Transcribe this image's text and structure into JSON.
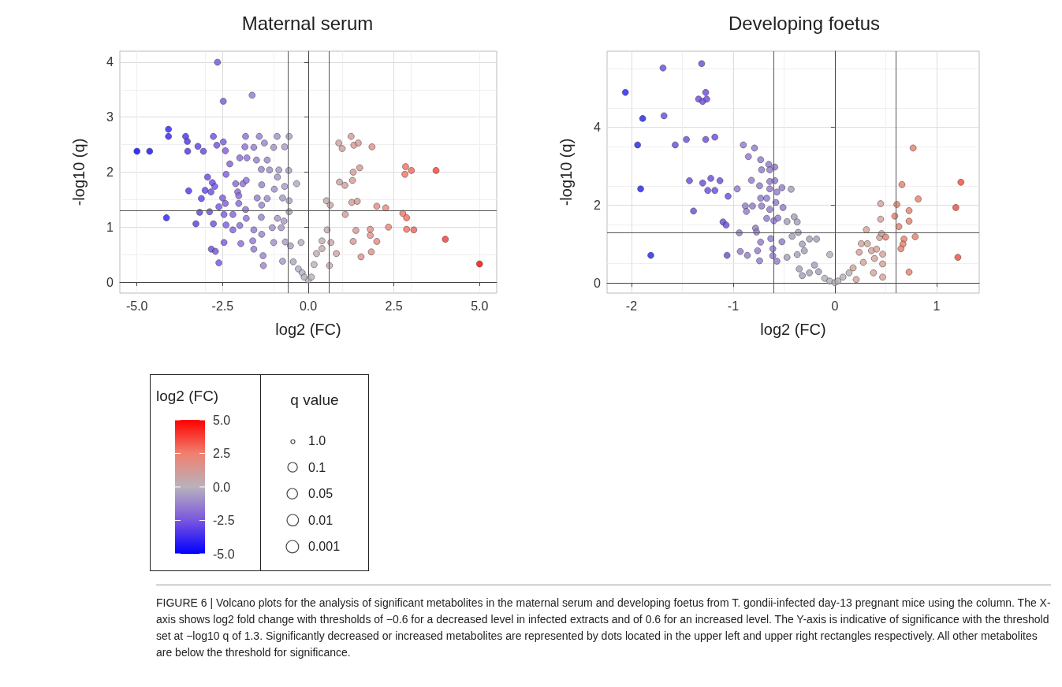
{
  "chart_data": [
    {
      "type": "scatter",
      "title": "Maternal serum",
      "xlabel": "log2 (FC)",
      "ylabel": "-log10 (q)",
      "clabel": "log2 (FC)",
      "clim": [
        -5,
        5
      ],
      "cticks": [
        {
          "value": -5,
          "label": "-5.0"
        },
        {
          "value": -2.5,
          "label": "-2.5"
        },
        {
          "value": 0,
          "label": "0.0"
        },
        {
          "value": 2.5,
          "label": "2.5"
        },
        {
          "value": 5,
          "label": "5.0"
        }
      ],
      "xlim": [
        -5.5,
        5.5
      ],
      "xticks": [
        {
          "value": -5,
          "label": "-5.0"
        },
        {
          "value": -2.5,
          "label": "-2.5"
        },
        {
          "value": 0,
          "label": "0.0"
        },
        {
          "value": 2.5,
          "label": "2.5"
        },
        {
          "value": 5,
          "label": "5.0"
        }
      ],
      "ylim": [
        -0.2,
        4.2
      ],
      "yticks": [
        0,
        1,
        2,
        3,
        4
      ],
      "grid": true,
      "marker": "circle",
      "ref_lines": [
        {
          "axis": "x",
          "value": -0.6,
          "label": null
        },
        {
          "axis": "x",
          "value": 0.6,
          "label": null
        },
        {
          "axis": "y",
          "value": 1.3,
          "label": null
        }
      ],
      "annotations": [
        "FIGURE 6 | Volcano plots for the analysis of significant metabolites in the maternal serum and developing foetus from T. gondii-infected day-13 pregnant mice using the column. The X-axis shows log2 fold change with thresholds of −0.6 for a decreased level in infected extracts and of 0.6 for an increased level. The Y-axis is indicative of significance with the threshold set at −log10 q of 1.3. Significantly decreased or increased metabolites are represented by dots located in the upper left and upper right rectangles respectively. All other metabolites are below the threshold for significance."
      ],
      "x": [
        -2.65,
        -1.64,
        -2.48,
        -4.08,
        -4.08,
        -5.0,
        -4.63,
        -3.58,
        -3.53,
        -3.52,
        -3.22,
        -3.06,
        -2.77,
        -2.67,
        -2.48,
        -2.42,
        -1.83,
        -1.43,
        -0.91,
        -0.56,
        -1.85,
        -1.59,
        -1.28,
        -1.01,
        -0.69,
        -2.29,
        -2.4,
        -2.0,
        -1.79,
        -1.51,
        -1.2,
        -1.37,
        -1.13,
        -0.86,
        -0.57,
        -2.94,
        -2.8,
        -2.73,
        -3.49,
        -3.01,
        -2.84,
        -2.12,
        -1.91,
        -1.81,
        -1.36,
        -0.9,
        -0.69,
        -0.34,
        -2.06,
        -2.03,
        -2.5,
        -3.12,
        -1.49,
        -1.2,
        -0.99,
        -0.75,
        -0.56,
        -2.61,
        -2.42,
        -2.03,
        -1.36,
        -3.17,
        -2.88,
        -2.46,
        -2.2,
        -1.83,
        -1.37,
        -0.9,
        -0.56,
        -4.14,
        -3.28,
        -2.77,
        -2.4,
        -2.2,
        -2.0,
        -1.81,
        -1.59,
        -1.05,
        -0.71,
        -2.46,
        -1.97,
        -1.62,
        -1.36,
        -1.01,
        -0.79,
        -2.83,
        -2.71,
        -1.59,
        -1.32,
        -2.61,
        -1.31,
        -0.67,
        -0.52,
        -0.21,
        -0.75,
        -0.44,
        -0.29,
        -0.18,
        0.0,
        0.09,
        -0.12,
        0.24,
        0.4,
        0.66,
        0.82,
        0.62,
        0.17,
        0.4,
        0.55,
        0.53,
        0.64,
        0.89,
        0.99,
        1.25,
        1.33,
        1.46,
        1.86,
        1.31,
        1.5,
        0.91,
        1.07,
        1.29,
        1.08,
        1.27,
        1.43,
        2.0,
        2.26,
        2.84,
        3.01,
        2.82,
        3.73,
        2.76,
        2.87,
        2.87,
        3.08,
        2.34,
        1.81,
        1.39,
        1.81,
        2.0,
        1.31,
        1.84,
        1.54,
        4.0,
        5.0
      ],
      "values": [
        4.0,
        3.4,
        3.29,
        2.78,
        2.65,
        2.38,
        2.38,
        2.65,
        2.56,
        2.38,
        2.47,
        2.38,
        2.65,
        2.49,
        2.55,
        2.39,
        2.65,
        2.65,
        2.65,
        2.65,
        2.46,
        2.45,
        2.53,
        2.45,
        2.46,
        2.15,
        1.96,
        2.26,
        2.26,
        2.22,
        2.22,
        2.05,
        2.04,
        2.04,
        2.03,
        1.91,
        1.81,
        1.74,
        1.66,
        1.67,
        1.64,
        1.79,
        1.79,
        1.85,
        1.77,
        1.91,
        1.74,
        1.79,
        1.64,
        1.57,
        1.53,
        1.52,
        1.53,
        1.52,
        1.69,
        1.53,
        1.48,
        1.37,
        1.43,
        1.43,
        1.4,
        1.27,
        1.28,
        1.23,
        1.23,
        1.32,
        1.18,
        1.16,
        1.28,
        1.17,
        1.06,
        1.06,
        1.04,
        0.95,
        1.03,
        1.16,
        0.95,
        0.99,
        1.11,
        0.72,
        0.7,
        0.75,
        0.87,
        0.72,
        0.99,
        0.6,
        0.56,
        0.6,
        0.48,
        0.35,
        0.3,
        0.73,
        0.66,
        0.72,
        0.38,
        0.37,
        0.24,
        0.17,
        0.04,
        0.09,
        0.09,
        0.52,
        0.75,
        0.72,
        0.52,
        0.3,
        0.32,
        0.61,
        0.95,
        1.48,
        1.4,
        2.53,
        2.43,
        2.65,
        2.49,
        2.53,
        2.46,
        2.0,
        2.08,
        1.82,
        1.76,
        1.85,
        1.23,
        1.45,
        1.47,
        1.38,
        1.35,
        2.1,
        2.03,
        1.96,
        2.03,
        1.25,
        1.17,
        0.96,
        0.95,
        1.0,
        0.96,
        0.94,
        0.85,
        0.74,
        0.74,
        0.55,
        0.46,
        0.78,
        0.33
      ],
      "cvalues": [
        -2.65,
        -1.64,
        -2.48,
        -4.08,
        -4.08,
        -5.0,
        -4.63,
        -3.58,
        -3.53,
        -3.52,
        -3.22,
        -3.06,
        -2.77,
        -2.67,
        -2.48,
        -2.42,
        -1.83,
        -1.43,
        -0.91,
        -0.56,
        -1.85,
        -1.59,
        -1.28,
        -1.01,
        -0.69,
        -2.29,
        -2.4,
        -2.0,
        -1.79,
        -1.51,
        -1.2,
        -1.37,
        -1.13,
        -0.86,
        -0.57,
        -2.94,
        -2.8,
        -2.73,
        -3.49,
        -3.01,
        -2.84,
        -2.12,
        -1.91,
        -1.81,
        -1.36,
        -0.9,
        -0.69,
        -0.34,
        -2.06,
        -2.03,
        -2.5,
        -3.12,
        -1.49,
        -1.2,
        -0.99,
        -0.75,
        -0.56,
        -2.61,
        -2.42,
        -2.03,
        -1.36,
        -3.17,
        -2.88,
        -2.46,
        -2.2,
        -1.83,
        -1.37,
        -0.9,
        -0.56,
        -4.14,
        -3.28,
        -2.77,
        -2.4,
        -2.2,
        -2.0,
        -1.81,
        -1.59,
        -1.05,
        -0.71,
        -2.46,
        -1.97,
        -1.62,
        -1.36,
        -1.01,
        -0.79,
        -2.83,
        -2.71,
        -1.59,
        -1.32,
        -2.61,
        -1.31,
        -0.67,
        -0.52,
        -0.21,
        -0.75,
        -0.44,
        -0.29,
        -0.18,
        0.0,
        0.09,
        -0.12,
        0.24,
        0.4,
        0.66,
        0.82,
        0.62,
        0.17,
        0.4,
        0.55,
        0.53,
        0.64,
        0.89,
        0.99,
        1.25,
        1.33,
        1.46,
        1.86,
        1.31,
        1.5,
        0.91,
        1.07,
        1.29,
        1.08,
        1.27,
        1.43,
        2.0,
        2.26,
        2.84,
        3.01,
        2.82,
        3.73,
        2.76,
        2.87,
        2.87,
        3.08,
        2.34,
        1.81,
        1.39,
        1.81,
        2.0,
        1.31,
        1.84,
        1.54,
        4.0,
        5.0
      ]
    },
    {
      "type": "scatter",
      "title": "Developing foetus",
      "xlabel": "log2 (FC)",
      "ylabel": "-log10 (q)",
      "colors": [
        "#6a48d8",
        "#6a48d8",
        "#2020e8",
        "#6a48d8",
        "#6a48d8",
        "#6a48d8",
        "#6a48d8",
        "#2020e8",
        "#6a48d8",
        "#2020e8",
        "#6a48d8",
        "#6a48d8",
        "#6a48d8",
        "#6a48d8",
        "#2020e8",
        "#6a48d8",
        "#6a48d8",
        "#6a48d8",
        "#6a48d8",
        "#6a48d8",
        "#6a48d8",
        "#6a48d8",
        "#6a48d8",
        "#2020e8",
        "#9078cc",
        "#9078cc",
        "#9078cc",
        "#9078cc",
        "#9078cc",
        "#9078cc",
        "#9078cc",
        "#9078cc",
        "#9078cc",
        "#9078cc",
        "#9078cc",
        "#9078cc",
        "#9078cc",
        "#9078cc",
        "#9078cc",
        "#a49cb8",
        "#9078cc",
        "#9078cc",
        "#9078cc",
        "#9078cc",
        "#9078cc",
        "#9078cc",
        "#9078cc",
        "#9078cc",
        "#9078cc",
        "#9078cc",
        "#9078cc",
        "#9078cc",
        "#9078cc",
        "#a49cb8",
        "#a49cb8",
        "#a49cb8",
        "#6a48d8",
        "#6a48d8",
        "#9078cc",
        "#9078cc",
        "#9078cc",
        "#9078cc",
        "#9078cc",
        "#a49cb8",
        "#a49cb8",
        "#a49cb8",
        "#a49cb8",
        "#6a48d8",
        "#9078cc",
        "#9078cc",
        "#9078cc",
        "#9078cc",
        "#9078cc",
        "#9078cc",
        "#9078cc",
        "#9078cc",
        "#a49cb8",
        "#a49cb8",
        "#a49cb8",
        "#a49cb8",
        "#a49cb8",
        "#a49cb8",
        "#a49cb8",
        "#a49cb8",
        "#a49cb8",
        "#b4aeb4",
        "#b4aeb4",
        "#b4aeb4",
        "#b4aeb4",
        "#b4aeb4",
        "#b4aeb4",
        "#b4aeb4",
        "#d4a096",
        "#d4a096",
        "#d4a096",
        "#d4a096",
        "#d4a096",
        "#d4a096",
        "#d4a096",
        "#d4a096",
        "#d4a096",
        "#d4a096",
        "#d4a096",
        "#d4a096",
        "#d4a096",
        "#d4a096",
        "#d4a096",
        "#d4a096",
        "#e4806a",
        "#d4a096",
        "#d4a096",
        "#e4806a",
        "#e4806a",
        "#e4806a",
        "#e4806a",
        "#e4806a",
        "#e4806a",
        "#e4806a",
        "#e4806a",
        "#e4806a",
        "#e4806a",
        "#e4806a",
        "#e4806a",
        "#e4806a",
        "#f04a3a",
        "#f04a3a",
        "#f04a3a"
      ],
      "xlim": [
        -2.24,
        1.42
      ],
      "xticks": [
        -2,
        -1,
        0,
        1
      ],
      "ylim": [
        -0.26,
        5.96
      ],
      "yticks": [
        0,
        2,
        4
      ],
      "grid": true,
      "marker": "circle",
      "ref_lines": [
        {
          "axis": "x",
          "value": -0.6,
          "label": null
        },
        {
          "axis": "x",
          "value": 0.6,
          "label": null
        },
        {
          "axis": "y",
          "value": 1.3,
          "label": null
        }
      ],
      "x": [
        -1.69,
        -1.31,
        -2.06,
        -1.27,
        -1.34,
        -1.3,
        -1.26,
        -1.89,
        -1.68,
        -1.94,
        -1.57,
        -1.46,
        -1.27,
        -1.18,
        -1.91,
        -1.43,
        -1.3,
        -1.22,
        -1.13,
        -1.25,
        -1.18,
        -1.05,
        -1.39,
        -1.81,
        -0.9,
        -0.79,
        -0.85,
        -0.73,
        -0.72,
        -0.65,
        -0.64,
        -0.59,
        -0.82,
        -0.74,
        -0.64,
        -0.59,
        -0.64,
        -0.57,
        -0.52,
        -0.43,
        -0.96,
        -0.73,
        -0.67,
        -0.88,
        -0.81,
        -0.72,
        -0.64,
        -0.58,
        -0.51,
        -0.87,
        -0.67,
        -0.6,
        -0.56,
        -0.47,
        -0.4,
        -0.37,
        -1.1,
        -1.07,
        -0.94,
        -0.78,
        -0.77,
        -0.63,
        -0.52,
        -0.42,
        -0.36,
        -0.32,
        -0.25,
        -1.06,
        -0.93,
        -0.86,
        -0.76,
        -0.73,
        -0.61,
        -0.74,
        -0.61,
        -0.57,
        -0.47,
        -0.37,
        -0.3,
        -0.18,
        -0.35,
        -0.32,
        -0.25,
        -0.2,
        -0.16,
        -0.05,
        -0.1,
        -0.05,
        0.0,
        0.03,
        0.08,
        0.14,
        0.18,
        0.21,
        0.24,
        0.26,
        0.32,
        0.28,
        0.36,
        0.31,
        0.41,
        0.39,
        0.38,
        0.47,
        0.47,
        0.47,
        0.44,
        0.46,
        0.5,
        0.45,
        0.45,
        0.61,
        0.59,
        0.63,
        0.66,
        0.73,
        0.73,
        0.82,
        0.77,
        0.68,
        0.67,
        0.65,
        0.79,
        0.73,
        1.24,
        1.19,
        1.21
      ],
      "values": [
        5.53,
        5.64,
        4.9,
        4.9,
        4.73,
        4.67,
        4.73,
        4.23,
        4.3,
        3.55,
        3.55,
        3.69,
        3.69,
        3.75,
        2.42,
        2.63,
        2.57,
        2.69,
        2.63,
        2.38,
        2.38,
        2.23,
        1.85,
        0.71,
        3.55,
        3.47,
        3.25,
        3.17,
        2.91,
        3.05,
        2.91,
        2.98,
        2.64,
        2.5,
        2.61,
        2.63,
        2.42,
        2.34,
        2.45,
        2.41,
        2.42,
        2.18,
        2.18,
        1.98,
        1.98,
        1.98,
        1.89,
        2.07,
        1.94,
        1.84,
        1.66,
        1.6,
        1.67,
        1.58,
        1.7,
        1.57,
        1.57,
        1.49,
        1.29,
        1.41,
        1.31,
        1.14,
        1.06,
        1.2,
        1.3,
        1.0,
        1.13,
        0.71,
        0.81,
        0.71,
        0.83,
        1.05,
        0.88,
        0.57,
        0.7,
        0.56,
        0.66,
        0.73,
        0.83,
        1.13,
        0.36,
        0.19,
        0.26,
        0.46,
        0.29,
        0.73,
        0.12,
        0.05,
        0.01,
        0.05,
        0.15,
        0.26,
        0.39,
        0.09,
        0.79,
        1.01,
        1.01,
        0.53,
        0.83,
        1.37,
        0.87,
        0.63,
        0.26,
        0.15,
        0.49,
        0.74,
        1.17,
        1.27,
        1.18,
        1.64,
        2.04,
        2.02,
        1.72,
        1.45,
        2.53,
        1.86,
        1.59,
        2.16,
        3.47,
        1.13,
        1.0,
        0.88,
        1.19,
        0.28,
        2.59,
        1.94,
        0.66
      ]
    },
    {
      "type": "other",
      "legend_title": "q value",
      "annotations": [
        "1.0",
        "0.1",
        "0.05",
        "0.01",
        "0.001"
      ]
    }
  ]
}
